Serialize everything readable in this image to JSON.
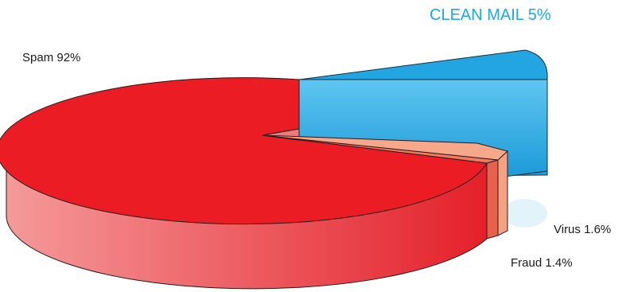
{
  "chart_data": {
    "type": "pie",
    "style": "3d-exploded",
    "slices": [
      {
        "label": "Spam 92%",
        "name": "Spam",
        "value": 92,
        "color": "#ec1c24"
      },
      {
        "label": "Fraud 1.4%",
        "name": "Fraud",
        "value": 1.4,
        "color": "#f0795e"
      },
      {
        "label": "Virus 1.6%",
        "name": "Virus",
        "value": 1.6,
        "color": "#f7a88a"
      },
      {
        "label": "CLEAN MAIL 5%",
        "name": "CLEAN MAIL",
        "value": 5,
        "color": "#27aae1"
      }
    ],
    "exploded_slice": "CLEAN MAIL",
    "label_colors": {
      "CLEAN MAIL": "#1ea7e6",
      "default": "#1a1a1a"
    }
  }
}
